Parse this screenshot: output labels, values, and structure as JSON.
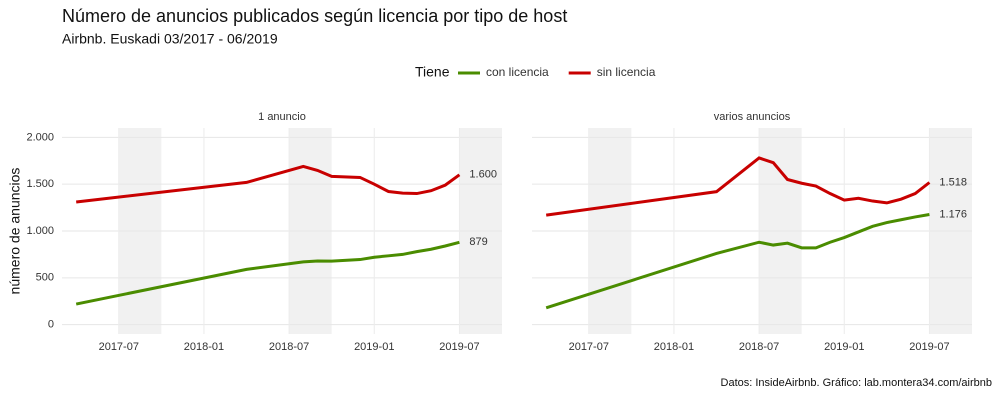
{
  "title": "Número de anuncios publicados según licencia por tipo de host",
  "subtitle": "Airbnb. Euskadi 03/2017 - 06/2019",
  "legend_title": "Tiene",
  "y_label": "número de anuncios",
  "caption": "Datos: InsideAirbnb. Gráfico: lab.montera34.com/airbnb",
  "chart_data": [
    {
      "type": "line",
      "title": "1 anuncio",
      "x": [
        "2017-04",
        "2018-04",
        "2018-08",
        "2018-09",
        "2018-10",
        "2018-12",
        "2019-01",
        "2019-02",
        "2019-03",
        "2019-04",
        "2019-05",
        "2019-06",
        "2019-07"
      ],
      "series": [
        {
          "name": "con licencia",
          "color": "#4a8c00",
          "values": [
            220,
            590,
            670,
            680,
            678,
            695,
            720,
            735,
            750,
            780,
            805,
            840,
            879
          ],
          "value_labels": [
            null,
            null,
            null,
            null,
            null,
            null,
            null,
            null,
            null,
            null,
            null,
            null,
            "879"
          ]
        },
        {
          "name": "sin licencia",
          "color": "#c80000",
          "values": [
            1310,
            1519,
            1690,
            1647,
            1583,
            1572,
            1500,
            1422,
            1405,
            1400,
            1430,
            1490,
            1600
          ],
          "value_labels": [
            null,
            null,
            null,
            null,
            null,
            null,
            null,
            null,
            null,
            null,
            null,
            null,
            "1.600"
          ]
        }
      ],
      "highlights": [
        [
          "2017-07",
          "2017-10"
        ],
        [
          "2018-07",
          "2018-10"
        ],
        [
          "2019-07",
          "2019-10"
        ]
      ],
      "xlim": [
        "2017-03",
        "2019-10"
      ],
      "xticks": [
        "2017-07",
        "2018-01",
        "2018-07",
        "2019-01",
        "2019-07"
      ],
      "ylim": [
        -100,
        2100
      ],
      "yticks": [
        0,
        500,
        {
          "value": 1000,
          "label": "1.000"
        },
        {
          "value": 1500,
          "label": "1.500"
        },
        {
          "value": 2000,
          "label": "2.000"
        }
      ],
      "grid": true
    },
    {
      "type": "line",
      "title": "varios anuncios",
      "x": [
        "2017-04",
        "2018-04",
        "2018-07",
        "2018-08",
        "2018-09",
        "2018-10",
        "2018-11",
        "2018-12",
        "2019-01",
        "2019-02",
        "2019-03",
        "2019-04",
        "2019-05",
        "2019-06",
        "2019-07"
      ],
      "series": [
        {
          "name": "con licencia",
          "color": "#4a8c00",
          "values": [
            180,
            760,
            880,
            850,
            870,
            820,
            820,
            880,
            930,
            990,
            1050,
            1090,
            1120,
            1150,
            1176
          ],
          "value_labels": [
            null,
            null,
            null,
            null,
            null,
            null,
            null,
            null,
            null,
            null,
            null,
            null,
            null,
            null,
            "1.176"
          ]
        },
        {
          "name": "sin licencia",
          "color": "#c80000",
          "values": [
            1170,
            1420,
            1780,
            1730,
            1550,
            1510,
            1480,
            1400,
            1330,
            1350,
            1320,
            1300,
            1340,
            1400,
            1518
          ],
          "value_labels": [
            null,
            null,
            null,
            null,
            null,
            null,
            null,
            null,
            null,
            null,
            null,
            null,
            null,
            null,
            "1.518"
          ]
        }
      ],
      "highlights": [
        [
          "2017-07",
          "2017-10"
        ],
        [
          "2018-07",
          "2018-10"
        ],
        [
          "2019-07",
          "2019-10"
        ]
      ],
      "xlim": [
        "2017-03",
        "2019-10"
      ],
      "xticks": [
        "2017-07",
        "2018-01",
        "2018-07",
        "2019-01",
        "2019-07"
      ],
      "ylim": [
        -100,
        2100
      ],
      "yticks": [
        0,
        500,
        {
          "value": 1000,
          "label": "1.000"
        },
        {
          "value": 1500,
          "label": "1.500"
        },
        {
          "value": 2000,
          "label": "2.000"
        }
      ],
      "grid": true
    }
  ]
}
